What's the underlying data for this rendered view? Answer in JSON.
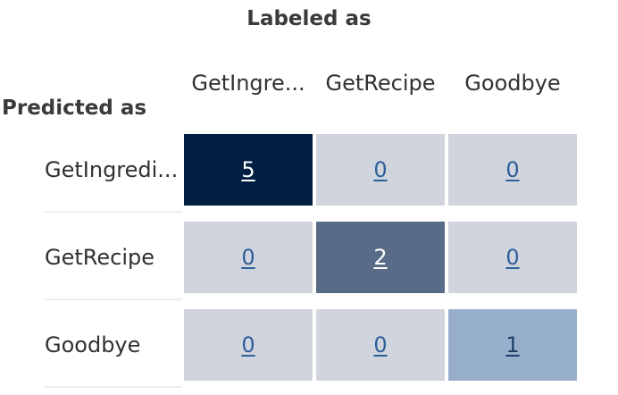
{
  "matrix": {
    "title": "Labeled as",
    "row_axis_label": "Predicted as",
    "column_headers": [
      "GetIngre...",
      "GetRecipe",
      "Goodbye"
    ],
    "row_headers": [
      "GetIngredi...",
      "GetRecipe",
      "Goodbye"
    ],
    "cells": [
      [
        "5",
        "0",
        "0"
      ],
      [
        "0",
        "2",
        "0"
      ],
      [
        "0",
        "0",
        "1"
      ]
    ],
    "colors": {
      "zero": "#d0d5dd",
      "count_5": "#001f42",
      "count_2": "#586c87",
      "count_1": "#98afcc"
    }
  }
}
